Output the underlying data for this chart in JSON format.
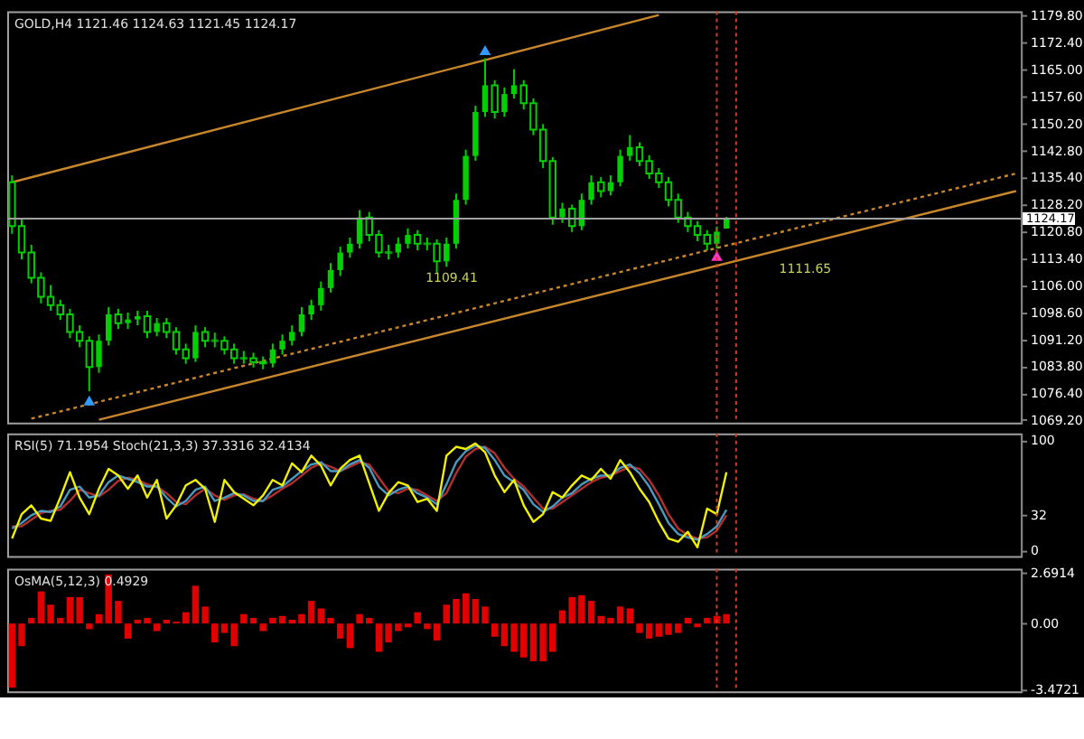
{
  "chart_data": [
    {
      "type": "candlestick",
      "title": "GOLD,H4  1121.46 1124.63 1121.45 1124.17",
      "color": "#00d000",
      "tick_labels": "y",
      "categories": [
        null,
        null,
        null,
        null,
        null,
        null,
        null,
        null,
        null,
        null,
        null,
        null,
        null,
        null,
        null,
        null,
        null,
        null,
        null,
        null,
        null,
        null,
        null,
        null,
        null,
        null,
        null,
        null,
        null,
        null,
        null,
        null,
        null,
        null,
        null,
        null,
        null,
        null,
        null,
        null,
        null,
        null,
        null,
        null,
        null,
        null,
        null,
        null,
        null,
        null,
        null,
        null,
        null,
        null,
        null,
        null,
        null,
        null,
        null,
        null,
        null,
        null,
        null,
        null,
        null,
        null,
        null,
        null,
        null,
        null,
        null,
        null,
        null,
        null,
        null,
        null,
        null,
        null,
        null,
        null,
        null,
        null,
        null,
        null,
        null,
        null,
        null,
        null,
        null,
        null,
        null,
        null,
        null,
        null,
        null,
        null,
        null,
        null,
        null,
        null,
        null,
        null,
        null,
        null,
        null
      ],
      "ohlc": [
        [
          1134.1,
          1136.0,
          1120.0,
          1122.1
        ],
        [
          1122.1,
          1124.0,
          1113.0,
          1114.9
        ],
        [
          1114.9,
          1117.0,
          1106.5,
          1108.0
        ],
        [
          1108.0,
          1109.5,
          1101.0,
          1102.8
        ],
        [
          1102.8,
          1106.0,
          1099.0,
          1100.5
        ],
        [
          1100.5,
          1102.0,
          1096.5,
          1098.0
        ],
        [
          1098.0,
          1099.5,
          1091.5,
          1093.2
        ],
        [
          1093.2,
          1095.0,
          1089.0,
          1090.8
        ],
        [
          1090.8,
          1092.0,
          1077.0,
          1083.6
        ],
        [
          1083.6,
          1092.5,
          1082.0,
          1090.8
        ],
        [
          1090.8,
          1100.0,
          1089.5,
          1098.0
        ],
        [
          1098.0,
          1099.5,
          1094.0,
          1095.6
        ],
        [
          1095.6,
          1098.5,
          1094.0,
          1096.6
        ],
        [
          1096.6,
          1099.0,
          1095.0,
          1097.5
        ],
        [
          1097.5,
          1099.0,
          1091.5,
          1093.2
        ],
        [
          1093.2,
          1097.0,
          1092.0,
          1095.6
        ],
        [
          1095.6,
          1097.0,
          1091.5,
          1093.2
        ],
        [
          1093.2,
          1094.5,
          1087.0,
          1088.4
        ],
        [
          1088.4,
          1090.0,
          1084.5,
          1086.0
        ],
        [
          1086.0,
          1095.0,
          1085.0,
          1093.2
        ],
        [
          1093.2,
          1094.5,
          1089.0,
          1090.8
        ],
        [
          1090.8,
          1093.0,
          1089.0,
          1090.8
        ],
        [
          1090.8,
          1092.0,
          1087.0,
          1088.4
        ],
        [
          1088.4,
          1090.0,
          1084.5,
          1086.0
        ],
        [
          1086.0,
          1088.0,
          1084.5,
          1086.0
        ],
        [
          1086.0,
          1087.5,
          1083.5,
          1085.0
        ],
        [
          1085.0,
          1086.5,
          1083.0,
          1084.6
        ],
        [
          1084.6,
          1090.0,
          1083.5,
          1088.4
        ],
        [
          1088.4,
          1092.5,
          1087.0,
          1090.8
        ],
        [
          1090.8,
          1095.0,
          1089.5,
          1093.2
        ],
        [
          1093.2,
          1100.0,
          1092.0,
          1098.0
        ],
        [
          1098.0,
          1102.0,
          1096.5,
          1100.5
        ],
        [
          1100.5,
          1107.0,
          1099.0,
          1105.2
        ],
        [
          1105.2,
          1112.0,
          1104.0,
          1110.1
        ],
        [
          1110.1,
          1116.5,
          1108.5,
          1114.9
        ],
        [
          1114.9,
          1119.0,
          1113.5,
          1117.3
        ],
        [
          1117.3,
          1126.5,
          1116.0,
          1124.5
        ],
        [
          1124.5,
          1126.0,
          1118.0,
          1119.7
        ],
        [
          1119.7,
          1121.0,
          1113.5,
          1114.9
        ],
        [
          1114.9,
          1117.0,
          1113.0,
          1114.9
        ],
        [
          1114.9,
          1119.0,
          1113.5,
          1117.3
        ],
        [
          1117.3,
          1121.5,
          1116.0,
          1119.7
        ],
        [
          1119.7,
          1121.0,
          1115.5,
          1117.3
        ],
        [
          1117.3,
          1119.0,
          1115.5,
          1117.3
        ],
        [
          1117.3,
          1118.5,
          1109.4,
          1112.5
        ],
        [
          1112.5,
          1119.0,
          1111.0,
          1117.3
        ],
        [
          1117.3,
          1131.0,
          1116.0,
          1129.3
        ],
        [
          1129.3,
          1143.0,
          1128.0,
          1141.3
        ],
        [
          1141.3,
          1155.0,
          1140.0,
          1153.3
        ],
        [
          1153.3,
          1168.0,
          1152.0,
          1160.6
        ],
        [
          1160.6,
          1162.0,
          1151.5,
          1153.3
        ],
        [
          1153.3,
          1160.0,
          1152.0,
          1158.2
        ],
        [
          1158.2,
          1165.0,
          1157.0,
          1160.6
        ],
        [
          1160.6,
          1162.0,
          1154.0,
          1155.7
        ],
        [
          1155.7,
          1157.0,
          1147.0,
          1148.5
        ],
        [
          1148.5,
          1150.0,
          1138.0,
          1139.9
        ],
        [
          1139.9,
          1141.0,
          1122.5,
          1124.5
        ],
        [
          1124.5,
          1128.5,
          1123.0,
          1126.9
        ],
        [
          1126.9,
          1128.0,
          1120.5,
          1122.1
        ],
        [
          1122.1,
          1131.0,
          1121.0,
          1129.3
        ],
        [
          1129.3,
          1136.0,
          1128.0,
          1134.1
        ],
        [
          1134.1,
          1135.5,
          1130.0,
          1131.7
        ],
        [
          1131.7,
          1136.0,
          1130.5,
          1134.1
        ],
        [
          1134.1,
          1143.0,
          1133.0,
          1141.3
        ],
        [
          1141.3,
          1147.0,
          1140.0,
          1143.7
        ],
        [
          1143.7,
          1145.0,
          1138.5,
          1139.9
        ],
        [
          1139.9,
          1141.5,
          1135.0,
          1136.5
        ],
        [
          1136.5,
          1138.0,
          1132.5,
          1134.1
        ],
        [
          1134.1,
          1135.5,
          1127.5,
          1129.3
        ],
        [
          1129.3,
          1131.0,
          1123.0,
          1124.5
        ],
        [
          1124.5,
          1126.0,
          1120.5,
          1122.1
        ],
        [
          1122.1,
          1123.5,
          1118.0,
          1119.7
        ],
        [
          1119.7,
          1121.0,
          1115.5,
          1117.3
        ],
        [
          1117.3,
          1122.0,
          1116.0,
          1120.6
        ],
        [
          1121.46,
          1124.63,
          1121.45,
          1124.17
        ],
        null,
        null,
        null,
        null,
        null,
        null,
        null,
        null,
        null,
        null,
        null,
        null,
        null,
        null,
        null,
        null,
        null,
        null,
        null,
        null,
        null,
        null,
        null,
        null,
        null,
        null,
        null,
        null,
        null,
        null
      ],
      "series": [
        {
          "type": "line",
          "color": "#c8872a",
          "line_style": "solid",
          "values": [
            1134.1,
            null,
            null,
            null,
            null,
            null,
            null,
            null,
            null,
            null,
            null,
            null,
            null,
            null,
            null,
            null,
            null,
            null,
            null,
            null,
            null,
            null,
            null,
            null,
            null,
            null,
            null,
            null,
            null,
            null,
            null,
            null,
            null,
            null,
            null,
            null,
            null,
            null,
            null,
            null,
            null,
            null,
            null,
            null,
            null,
            null,
            null,
            null,
            null,
            null,
            null,
            null,
            null,
            null,
            null,
            null,
            null,
            null,
            null,
            null,
            null,
            null,
            null,
            null,
            null,
            null,
            null,
            1179.8,
            null,
            null,
            null,
            null,
            null,
            null,
            null,
            null,
            null,
            null,
            null,
            null,
            null,
            null,
            null,
            null,
            null,
            null,
            null,
            null,
            null,
            null,
            null,
            null,
            null,
            null,
            null,
            null,
            null,
            null,
            null,
            null,
            null,
            null,
            null,
            null,
            null
          ]
        },
        {
          "type": "line",
          "color": "#c8872a",
          "line_style": "solid",
          "values": [
            null,
            null,
            null,
            null,
            null,
            null,
            null,
            null,
            null,
            1069.2,
            null,
            null,
            null,
            null,
            null,
            null,
            null,
            null,
            null,
            null,
            null,
            null,
            null,
            null,
            null,
            null,
            null,
            null,
            null,
            null,
            null,
            null,
            null,
            null,
            null,
            null,
            null,
            null,
            null,
            null,
            null,
            null,
            null,
            null,
            null,
            null,
            null,
            null,
            null,
            null,
            null,
            null,
            null,
            null,
            null,
            null,
            null,
            null,
            null,
            null,
            null,
            null,
            null,
            null,
            null,
            null,
            null,
            null,
            null,
            null,
            null,
            null,
            null,
            null,
            null,
            null,
            null,
            null,
            null,
            null,
            null,
            null,
            null,
            null,
            null,
            null,
            null,
            null,
            null,
            null,
            null,
            null,
            null,
            null,
            null,
            null,
            null,
            null,
            null,
            null,
            null,
            null,
            null,
            null,
            1131.7
          ]
        },
        {
          "type": "line",
          "color": "#c8872a",
          "line_style": "dotted",
          "values": [
            null,
            null,
            1069.5,
            null,
            null,
            null,
            null,
            null,
            null,
            null,
            null,
            null,
            null,
            null,
            null,
            null,
            null,
            null,
            null,
            null,
            null,
            null,
            null,
            null,
            null,
            null,
            null,
            null,
            null,
            null,
            null,
            null,
            null,
            null,
            null,
            null,
            null,
            null,
            null,
            null,
            null,
            null,
            null,
            null,
            null,
            null,
            null,
            null,
            null,
            null,
            null,
            null,
            null,
            null,
            null,
            null,
            null,
            null,
            null,
            null,
            null,
            null,
            null,
            null,
            null,
            null,
            null,
            null,
            null,
            null,
            null,
            null,
            null,
            null,
            null,
            null,
            null,
            null,
            null,
            null,
            null,
            null,
            null,
            null,
            null,
            null,
            null,
            null,
            null,
            null,
            null,
            null,
            null,
            null,
            null,
            null,
            null,
            null,
            null,
            null,
            null,
            null,
            null,
            null,
            1136.5
          ]
        },
        {
          "type": "scatter",
          "marker": "triangle",
          "color": "#3399ff",
          "values": [
            null,
            null,
            null,
            null,
            null,
            null,
            null,
            null,
            1074.5,
            null,
            null,
            null,
            null,
            null,
            null,
            null,
            null,
            null,
            null,
            null,
            null,
            null,
            null,
            null,
            null,
            null,
            null,
            null,
            null,
            null,
            null,
            null,
            null,
            null,
            null,
            null,
            null,
            null,
            null,
            null,
            null,
            null,
            null,
            null,
            null,
            null,
            null,
            null,
            null,
            1170.2,
            null,
            null,
            null,
            null,
            null,
            null,
            null,
            null,
            null,
            null,
            null,
            null,
            null,
            null,
            null,
            null,
            null,
            null,
            null,
            null,
            null,
            null,
            null,
            null,
            null,
            null,
            null,
            null,
            null,
            null,
            null,
            null,
            null,
            null,
            null,
            null,
            null,
            null,
            null,
            null,
            null,
            null,
            null,
            null,
            null,
            null,
            null,
            null,
            null,
            null,
            null,
            null,
            null,
            null,
            null
          ]
        },
        {
          "type": "scatter",
          "marker": "triangle",
          "color": "#ff33cc",
          "values": [
            null,
            null,
            null,
            null,
            null,
            null,
            null,
            null,
            null,
            null,
            null,
            null,
            null,
            null,
            null,
            null,
            null,
            null,
            null,
            null,
            null,
            null,
            null,
            null,
            null,
            null,
            null,
            null,
            null,
            null,
            null,
            null,
            null,
            null,
            null,
            null,
            null,
            null,
            null,
            null,
            null,
            null,
            null,
            null,
            null,
            null,
            null,
            null,
            null,
            null,
            null,
            null,
            null,
            null,
            null,
            null,
            null,
            null,
            null,
            null,
            null,
            null,
            null,
            null,
            null,
            null,
            null,
            null,
            null,
            null,
            null,
            null,
            null,
            1114.0,
            null,
            null,
            null,
            null,
            null,
            null,
            null,
            null,
            null,
            null,
            null,
            null,
            null,
            null,
            null,
            null,
            null,
            null,
            null,
            null,
            null,
            null,
            null,
            null,
            null,
            null,
            null,
            null,
            null,
            null,
            null
          ]
        }
      ],
      "ylim": [
        1068.4,
        1180.8
      ],
      "yticks": [
        {
          "value": 1179.8,
          "label": "1179.80"
        },
        {
          "value": 1172.4,
          "label": "1172.40"
        },
        {
          "value": 1165.0,
          "label": "1165.00"
        },
        {
          "value": 1157.6,
          "label": "1157.60"
        },
        {
          "value": 1150.2,
          "label": "1150.20"
        },
        {
          "value": 1142.8,
          "label": "1142.80"
        },
        {
          "value": 1135.4,
          "label": "1135.40"
        },
        {
          "value": 1128.2,
          "label": "1128.20"
        },
        {
          "value": 1120.8,
          "label": "1120.80"
        },
        {
          "value": 1113.4,
          "label": "1113.40"
        },
        {
          "value": 1106.0,
          "label": "1106.00"
        },
        {
          "value": 1098.6,
          "label": "1098.60"
        },
        {
          "value": 1091.2,
          "label": "1091.20"
        },
        {
          "value": 1083.8,
          "label": "1083.80"
        },
        {
          "value": 1076.4,
          "label": "1076.40"
        },
        {
          "value": 1069.2,
          "label": "1069.20"
        }
      ],
      "ref_lines": [
        {
          "axis": "y",
          "value": 1124.17,
          "label": "1124.17",
          "color": "#a0a0a0",
          "line_style": "solid"
        }
      ],
      "annotations": [
        "1109.41",
        "1111.65"
      ]
    },
    {
      "type": "line",
      "title": "RSI(5) 71.1954  Stoch(21,3,3) 37.3316 32.4134",
      "tick_labels": "y",
      "categories": [
        null,
        null,
        null,
        null,
        null,
        null,
        null,
        null,
        null,
        null,
        null,
        null,
        null,
        null,
        null,
        null,
        null,
        null,
        null,
        null,
        null,
        null,
        null,
        null,
        null,
        null,
        null,
        null,
        null,
        null,
        null,
        null,
        null,
        null,
        null,
        null,
        null,
        null,
        null,
        null,
        null,
        null,
        null,
        null,
        null,
        null,
        null,
        null,
        null,
        null,
        null,
        null,
        null,
        null,
        null,
        null,
        null,
        null,
        null,
        null,
        null,
        null,
        null,
        null,
        null,
        null,
        null,
        null,
        null,
        null,
        null,
        null,
        null,
        null,
        null,
        null,
        null,
        null,
        null,
        null,
        null,
        null,
        null,
        null,
        null,
        null,
        null,
        null,
        null,
        null,
        null,
        null,
        null,
        null,
        null,
        null,
        null,
        null,
        null,
        null,
        null,
        null,
        null,
        null,
        null
      ],
      "series": [
        {
          "color": "#b03030",
          "values": [
            22,
            22,
            28,
            34,
            36,
            37,
            45,
            55,
            52,
            49,
            55,
            63,
            66,
            64,
            60,
            58,
            52,
            44,
            42,
            50,
            56,
            50,
            46,
            50,
            51,
            47,
            45,
            50,
            56,
            61,
            68,
            75,
            79,
            76,
            72,
            76,
            80,
            78,
            66,
            54,
            52,
            56,
            55,
            50,
            45,
            52,
            70,
            85,
            92,
            94,
            88,
            75,
            65,
            58,
            48,
            38,
            38,
            44,
            50,
            56,
            62,
            66,
            68,
            72,
            76,
            74,
            64,
            50,
            33,
            20,
            14,
            11,
            12,
            18,
            32,
            null,
            null,
            null,
            null,
            null,
            null,
            null,
            null,
            null,
            null,
            null,
            null,
            null,
            null,
            null,
            null,
            null,
            null,
            null,
            null,
            null,
            null,
            null,
            null,
            null,
            null,
            null,
            null,
            null,
            null
          ]
        },
        {
          "color": "#4a9ac0",
          "values": [
            20,
            25,
            32,
            36,
            35,
            40,
            55,
            58,
            48,
            50,
            62,
            68,
            65,
            62,
            58,
            58,
            48,
            40,
            45,
            55,
            58,
            45,
            48,
            52,
            50,
            45,
            45,
            55,
            58,
            65,
            72,
            78,
            80,
            72,
            72,
            78,
            82,
            75,
            58,
            50,
            55,
            58,
            52,
            48,
            42,
            60,
            80,
            90,
            95,
            93,
            82,
            68,
            62,
            55,
            42,
            35,
            40,
            48,
            52,
            60,
            65,
            68,
            68,
            75,
            78,
            70,
            58,
            42,
            25,
            15,
            12,
            10,
            15,
            22,
            37,
            null,
            null,
            null,
            null,
            null,
            null,
            null,
            null,
            null,
            null,
            null,
            null,
            null,
            null,
            null,
            null,
            null,
            null,
            null,
            null,
            null,
            null,
            null,
            null,
            null,
            null,
            null,
            null,
            null,
            null
          ]
        },
        {
          "color": "#f0f000",
          "values": [
            11,
            33,
            41,
            29,
            27,
            48,
            71,
            48,
            33,
            56,
            74,
            68,
            56,
            68,
            48,
            64,
            29,
            41,
            59,
            64,
            56,
            26,
            64,
            53,
            47,
            41,
            50,
            64,
            59,
            79,
            71,
            86,
            77,
            59,
            74,
            82,
            86,
            61,
            36,
            52,
            62,
            59,
            44,
            47,
            36,
            86,
            94,
            92,
            97,
            89,
            68,
            53,
            64,
            41,
            26,
            33,
            53,
            48,
            59,
            68,
            64,
            74,
            65,
            82,
            71,
            56,
            44,
            26,
            11,
            8,
            17,
            3,
            38,
            33,
            71,
            null,
            null,
            null,
            null,
            null,
            null,
            null,
            null,
            null,
            null,
            null,
            null,
            null,
            null,
            null,
            null,
            null,
            null,
            null,
            null,
            null,
            null,
            null,
            null,
            null,
            null,
            null,
            null,
            null,
            null
          ]
        }
      ],
      "ylim": [
        -5,
        106
      ],
      "yticks": [
        100,
        32,
        0
      ]
    },
    {
      "type": "bar",
      "title": "OsMA(5,12,3) 0.4929",
      "tick_labels": "y",
      "color": "#e00000",
      "categories": [
        null,
        null,
        null,
        null,
        null,
        null,
        null,
        null,
        null,
        null,
        null,
        null,
        null,
        null,
        null,
        null,
        null,
        null,
        null,
        null,
        null,
        null,
        null,
        null,
        null,
        null,
        null,
        null,
        null,
        null,
        null,
        null,
        null,
        null,
        null,
        null,
        null,
        null,
        null,
        null,
        null,
        null,
        null,
        null,
        null,
        null,
        null,
        null,
        null,
        null,
        null,
        null,
        null,
        null,
        null,
        null,
        null,
        null,
        null,
        null,
        null,
        null,
        null,
        null,
        null,
        null,
        null,
        null,
        null,
        null,
        null,
        null,
        null,
        null,
        null,
        null,
        null,
        null,
        null,
        null,
        null,
        null,
        null,
        null,
        null,
        null,
        null,
        null,
        null,
        null,
        null,
        null,
        null,
        null,
        null,
        null,
        null,
        null,
        null,
        null,
        null,
        null,
        null,
        null,
        null
      ],
      "values": [
        -3.4,
        -1.2,
        0.3,
        1.7,
        1.0,
        0.3,
        1.4,
        1.4,
        -0.3,
        0.5,
        2.6,
        1.2,
        -0.8,
        0.2,
        0.3,
        -0.4,
        0.2,
        0.1,
        0.6,
        2.0,
        0.9,
        -1.0,
        -0.5,
        -1.2,
        0.5,
        0.3,
        -0.4,
        0.3,
        0.4,
        0.2,
        0.5,
        1.2,
        0.8,
        0.3,
        -0.8,
        -1.3,
        0.5,
        0.3,
        -1.5,
        -1.0,
        -0.4,
        -0.2,
        0.6,
        -0.3,
        -0.9,
        1.0,
        1.3,
        1.6,
        1.3,
        0.9,
        -0.7,
        -1.2,
        -1.5,
        -1.8,
        -2.0,
        -2.0,
        -1.5,
        0.7,
        1.4,
        1.5,
        1.2,
        0.4,
        0.3,
        0.9,
        0.8,
        -0.5,
        -0.8,
        -0.7,
        -0.6,
        -0.5,
        0.3,
        -0.2,
        0.3,
        0.4,
        0.5,
        null,
        null,
        null,
        null,
        null,
        null,
        null,
        null,
        null,
        null,
        null,
        null,
        null,
        null,
        null,
        null,
        null,
        null,
        null,
        null,
        null,
        null,
        null,
        null,
        null,
        null,
        null,
        null,
        null,
        null
      ],
      "ylim": [
        -3.6,
        2.9
      ],
      "yticks": [
        {
          "value": 2.6914,
          "label": "2.6914"
        },
        {
          "value": 0,
          "label": "0.00"
        },
        {
          "value": -3.4721,
          "label": "-3.4721"
        }
      ]
    }
  ]
}
